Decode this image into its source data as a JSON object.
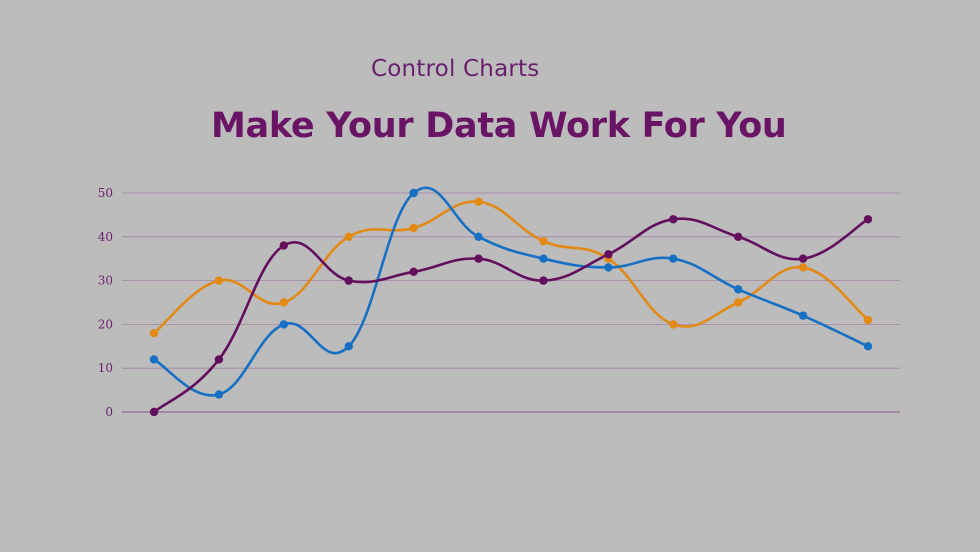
{
  "header": {
    "subtitle": "Control Charts",
    "title": "Make Your Data Work For You"
  },
  "chart_data": {
    "type": "line",
    "smooth": true,
    "x": [
      1,
      2,
      3,
      4,
      5,
      6,
      7,
      8,
      9,
      10,
      11,
      12
    ],
    "ylim": [
      0,
      50
    ],
    "yticks": [
      "0",
      "10",
      "20",
      "30",
      "40",
      "50"
    ],
    "grid": true,
    "legend": "none",
    "series": [
      {
        "color": "#e28a14",
        "values": [
          18,
          30,
          25,
          40,
          42,
          48,
          39,
          35,
          20,
          25,
          33,
          21
        ]
      },
      {
        "color": "#1670c4",
        "values": [
          12,
          4,
          20,
          15,
          50,
          40,
          35,
          33,
          35,
          28,
          22,
          15
        ]
      },
      {
        "color": "#640e5e",
        "values": [
          0,
          12,
          38,
          30,
          32,
          35,
          30,
          36,
          44,
          40,
          35,
          44
        ]
      }
    ],
    "gridline_color": "#a583a8",
    "axis_color": "#8e6a93"
  }
}
